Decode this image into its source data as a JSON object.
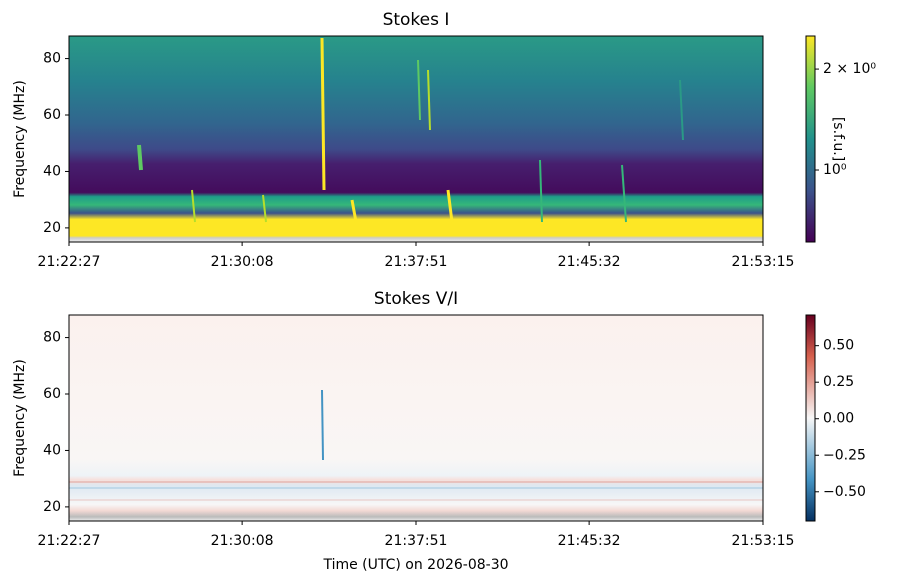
{
  "chart_data": [
    {
      "type": "heatmap",
      "title": "Stokes I",
      "ylabel": "Frequency (MHz)",
      "xlim": [
        76947,
        78795
      ],
      "xticks": [
        {
          "value": 76947,
          "label": "21:22:27"
        },
        {
          "value": 77408,
          "label": "21:30:08"
        },
        {
          "value": 77871,
          "label": "21:37:51"
        },
        {
          "value": 78332,
          "label": "21:45:32"
        },
        {
          "value": 78795,
          "label": "21:53:15"
        }
      ],
      "ylim": [
        15,
        88
      ],
      "yticks": [
        20,
        40,
        60,
        80
      ],
      "cmap": "viridis",
      "colorbar": {
        "label": "[s.f.u.]",
        "log": true,
        "lim": [
          0.61,
          2.51
        ],
        "ticks": [
          {
            "value": 1,
            "label": "10⁰"
          },
          {
            "value": 2,
            "label": "2 × 10⁰"
          }
        ]
      }
    },
    {
      "type": "heatmap",
      "title": "Stokes V/I",
      "ylabel": "Frequency (MHz)",
      "xlabel": "Time (UTC) on 2026-08-30",
      "xlim": [
        76947,
        78795
      ],
      "xticks": [
        {
          "value": 76947,
          "label": "21:22:27"
        },
        {
          "value": 77408,
          "label": "21:30:08"
        },
        {
          "value": 77871,
          "label": "21:37:51"
        },
        {
          "value": 78332,
          "label": "21:45:32"
        },
        {
          "value": 78795,
          "label": "21:53:15"
        }
      ],
      "ylim": [
        15,
        88
      ],
      "yticks": [
        20,
        40,
        60,
        80
      ],
      "cmap": "RdBu_r",
      "colorbar": {
        "log": false,
        "lim": [
          -0.7,
          0.71
        ],
        "ticks": [
          {
            "value": -0.5,
            "label": "−0.50"
          },
          {
            "value": -0.25,
            "label": "−0.25"
          },
          {
            "value": 0,
            "label": "0.00"
          },
          {
            "value": 0.25,
            "label": "0.25"
          },
          {
            "value": 0.5,
            "label": "0.50"
          }
        ]
      }
    }
  ]
}
